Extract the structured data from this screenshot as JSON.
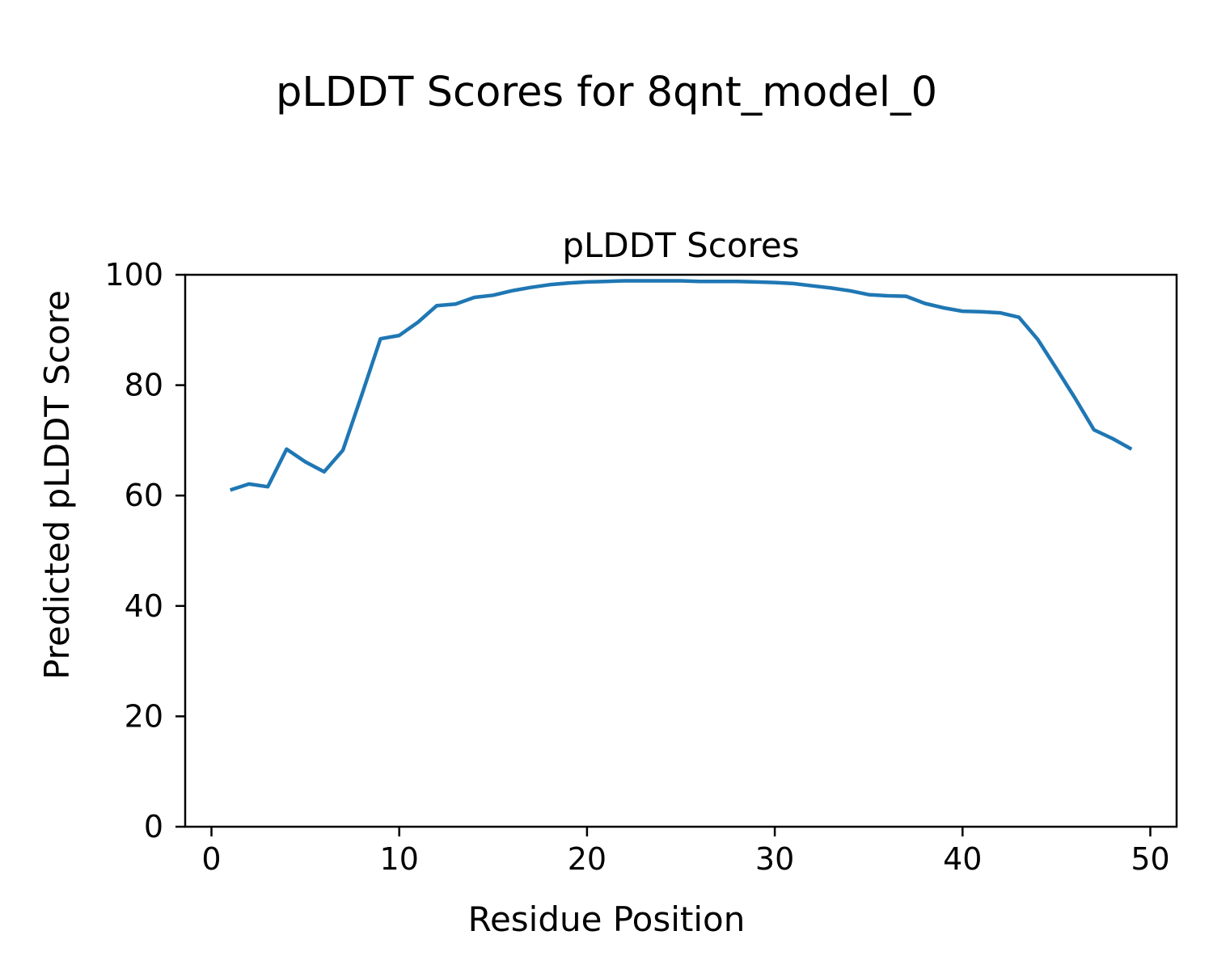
{
  "chart_data": {
    "type": "line",
    "figure_title": "pLDDT Scores for 8qnt_model_0",
    "title": "pLDDT Scores",
    "xlabel": "Residue Position",
    "ylabel": "Predicted pLDDT Score",
    "x": [
      1,
      2,
      3,
      4,
      5,
      6,
      7,
      8,
      9,
      10,
      11,
      12,
      13,
      14,
      15,
      16,
      17,
      18,
      19,
      20,
      21,
      22,
      23,
      24,
      25,
      26,
      27,
      28,
      29,
      30,
      31,
      32,
      33,
      34,
      35,
      36,
      37,
      38,
      39,
      40,
      41,
      42,
      43,
      44,
      45,
      46,
      47,
      48,
      49
    ],
    "y": [
      61.0,
      62.1,
      61.6,
      68.4,
      66.1,
      64.3,
      68.2,
      78.2,
      88.4,
      89.0,
      91.4,
      94.4,
      94.7,
      95.9,
      96.3,
      97.1,
      97.7,
      98.2,
      98.5,
      98.7,
      98.8,
      98.9,
      98.9,
      98.9,
      98.9,
      98.8,
      98.8,
      98.8,
      98.7,
      98.6,
      98.4,
      98.0,
      97.6,
      97.1,
      96.4,
      96.2,
      96.1,
      94.8,
      94.0,
      93.4,
      93.3,
      93.1,
      92.3,
      88.3,
      83.0,
      77.6,
      71.9,
      70.3,
      68.4
    ],
    "xlim": [
      -1.4,
      51.4
    ],
    "ylim": [
      0,
      100
    ],
    "xticks": [
      0,
      10,
      20,
      30,
      40,
      50
    ],
    "yticks": [
      0,
      20,
      40,
      60,
      80,
      100
    ],
    "grid": false,
    "legend": null,
    "line_color": "#1f77b4",
    "axis_color": "#000000",
    "background_color": "#ffffff"
  }
}
